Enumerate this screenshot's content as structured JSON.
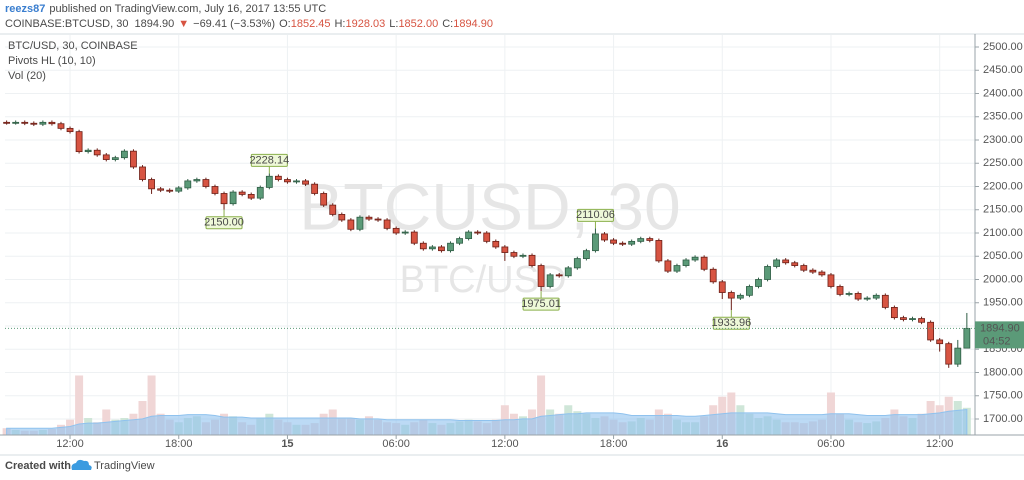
{
  "header": {
    "user": "reezs87",
    "published": "published on TradingView.com, July 16, 2017 13:55 UTC",
    "symbol": "COINBASE:BTCUSD, 30",
    "last_price": "1894.90",
    "arrow": "▼",
    "change": "−69.41 (−3.53%)",
    "ohlc": [
      {
        "label": "O:",
        "value": "1852.45"
      },
      {
        "label": "H:",
        "value": "1928.03"
      },
      {
        "label": "L:",
        "value": "1852.00"
      },
      {
        "label": "C:",
        "value": "1894.90"
      }
    ]
  },
  "footer": {
    "created": "Created with",
    "brand": "TradingView"
  },
  "chart_data": {
    "type": "candlestick",
    "title": "BTC/USD, 30, COINBASE",
    "indicators": [
      "Pivots HL (10, 10)",
      "Vol (20)"
    ],
    "watermark": "BTCUSD, 30",
    "watermark_sub": "BTC/USD",
    "countdown": "04:52",
    "up_color": "#5b9a78",
    "down_color": "#d75442",
    "volume_up_color": "#cfe6d8",
    "volume_down_color": "#f0d6d6",
    "volume_ma_color": "#8fc2ee",
    "grid": true,
    "xlim": [
      8.41,
      61.95
    ],
    "xticks": [
      {
        "value": 12,
        "label": "12:00"
      },
      {
        "value": 18,
        "label": "18:00"
      },
      {
        "value": 24,
        "label": "15"
      },
      {
        "value": 30,
        "label": "06:00"
      },
      {
        "value": 36,
        "label": "12:00"
      },
      {
        "value": 42,
        "label": "18:00"
      },
      {
        "value": 48,
        "label": "16"
      },
      {
        "value": 54,
        "label": "06:00"
      },
      {
        "value": 60,
        "label": "12:00"
      }
    ],
    "ylim": [
      1665.6,
      2525.8
    ],
    "yticks": [
      {
        "value": 1700,
        "label": "1700.00"
      },
      {
        "value": 1750,
        "label": "1750.00"
      },
      {
        "value": 1800,
        "label": "1800.00"
      },
      {
        "value": 1850,
        "label": "1850.00"
      },
      {
        "value": 1900,
        "label": "1900.00"
      },
      {
        "value": 1950,
        "label": "1950.00"
      },
      {
        "value": 2000,
        "label": "2000.00"
      },
      {
        "value": 2050,
        "label": "2050.00"
      },
      {
        "value": 2100,
        "label": "2100.00"
      },
      {
        "value": 2150,
        "label": "2150.00"
      },
      {
        "value": 2200,
        "label": "2200.00"
      },
      {
        "value": 2250,
        "label": "2250.00"
      },
      {
        "value": 2300,
        "label": "2300.00"
      },
      {
        "value": 2350,
        "label": "2350.00"
      },
      {
        "value": 2400,
        "label": "2400.00"
      },
      {
        "value": 2450,
        "label": "2450.00"
      },
      {
        "value": 2500,
        "label": "2500.00"
      }
    ],
    "vlim": [
      0,
      100
    ],
    "x": [
      8.5,
      9,
      9.5,
      10,
      10.5,
      11,
      11.5,
      12,
      12.5,
      13,
      13.5,
      14,
      14.5,
      15,
      15.5,
      16,
      16.5,
      17,
      17.5,
      18,
      18.5,
      19,
      19.5,
      20,
      20.5,
      21,
      21.5,
      22,
      22.5,
      23,
      23.5,
      24,
      24.5,
      25,
      25.5,
      26,
      26.5,
      27,
      27.5,
      28,
      28.5,
      29,
      29.5,
      30,
      30.5,
      31,
      31.5,
      32,
      32.5,
      33,
      33.5,
      34,
      34.5,
      35,
      35.5,
      36,
      36.5,
      37,
      37.5,
      38,
      38.5,
      39,
      39.5,
      40,
      40.5,
      41,
      41.5,
      42,
      42.5,
      43,
      43.5,
      44,
      44.5,
      45,
      45.5,
      46,
      46.5,
      47,
      47.5,
      48,
      48.5,
      49,
      49.5,
      50,
      50.5,
      51,
      51.5,
      52,
      52.5,
      53,
      53.5,
      54,
      54.5,
      55,
      55.5,
      56,
      56.5,
      57,
      57.5,
      58,
      58.5,
      59,
      59.5,
      60,
      60.5,
      61,
      61.5
    ],
    "open": [
      2338,
      2337,
      2338,
      2336,
      2334,
      2338,
      2335,
      2325,
      2318,
      2275,
      2278,
      2268,
      2258,
      2262,
      2276,
      2242,
      2215,
      2195,
      2192,
      2190,
      2197,
      2212,
      2215,
      2200,
      2185,
      2163,
      2188,
      2183,
      2175,
      2198,
      2222,
      2215,
      2210,
      2212,
      2205,
      2185,
      2160,
      2140,
      2128,
      2108,
      2134,
      2130,
      2128,
      2110,
      2100,
      2102,
      2078,
      2066,
      2070,
      2062,
      2078,
      2088,
      2102,
      2100,
      2082,
      2070,
      2058,
      2050,
      2052,
      2030,
      1985,
      2010,
      2008,
      2025,
      2045,
      2062,
      2098,
      2085,
      2078,
      2076,
      2082,
      2088,
      2084,
      2040,
      2018,
      2030,
      2042,
      2048,
      2022,
      1995,
      1972,
      1960,
      1966,
      1985,
      2000,
      2028,
      2042,
      2036,
      2030,
      2020,
      2016,
      2010,
      1985,
      1968,
      1970,
      1958,
      1960,
      1966,
      1940,
      1918,
      1914,
      1916,
      1908,
      1870,
      1862,
      1818,
      1852.45
    ],
    "high": [
      2342,
      2342,
      2342,
      2340,
      2342,
      2342,
      2339,
      2329,
      2322,
      2282,
      2282,
      2272,
      2266,
      2280,
      2280,
      2246,
      2219,
      2199,
      2196,
      2201,
      2216,
      2219,
      2219,
      2204,
      2189,
      2192,
      2192,
      2187,
      2202,
      2228.14,
      2226,
      2219,
      2216,
      2216,
      2209,
      2189,
      2164,
      2144,
      2132,
      2138,
      2138,
      2134,
      2132,
      2114,
      2106,
      2106,
      2082,
      2074,
      2074,
      2082,
      2092,
      2106,
      2106,
      2104,
      2086,
      2074,
      2062,
      2056,
      2056,
      2034,
      2014,
      2014,
      2029,
      2049,
      2066,
      2110.06,
      2102,
      2089,
      2082,
      2086,
      2092,
      2092,
      2088,
      2044,
      2034,
      2046,
      2052,
      2052,
      2026,
      1999,
      1976,
      1970,
      1989,
      2004,
      2032,
      2046,
      2046,
      2040,
      2034,
      2024,
      2020,
      2014,
      1989,
      1974,
      1974,
      1964,
      1970,
      1970,
      1944,
      1922,
      1920,
      1920,
      1912,
      1874,
      1866,
      1870,
      1928.03
    ],
    "low": [
      2333,
      2333,
      2332,
      2330,
      2330,
      2331,
      2321,
      2314,
      2271,
      2271,
      2264,
      2254,
      2254,
      2258,
      2238,
      2211,
      2184,
      2188,
      2186,
      2186,
      2193,
      2208,
      2196,
      2181,
      2150,
      2159,
      2179,
      2171,
      2171,
      2194,
      2211,
      2206,
      2206,
      2201,
      2181,
      2156,
      2136,
      2124,
      2104,
      2104,
      2126,
      2124,
      2106,
      2096,
      2096,
      2074,
      2062,
      2062,
      2058,
      2058,
      2074,
      2084,
      2096,
      2078,
      2066,
      2040,
      2046,
      2046,
      2026,
      1975.01,
      1981,
      2004,
      2004,
      2021,
      2041,
      2058,
      2081,
      2074,
      2072,
      2072,
      2078,
      2080,
      2036,
      2014,
      2014,
      2026,
      2038,
      2018,
      1991,
      1958,
      1933.96,
      1956,
      1962,
      1981,
      1996,
      2024,
      2032,
      2026,
      2016,
      2012,
      2006,
      1981,
      1964,
      1964,
      1954,
      1954,
      1956,
      1936,
      1914,
      1910,
      1910,
      1904,
      1866,
      1845,
      1810,
      1812,
      1852
    ],
    "close": [
      2337,
      2338,
      2336,
      2334,
      2338,
      2335,
      2325,
      2318,
      2275,
      2278,
      2268,
      2258,
      2262,
      2276,
      2242,
      2215,
      2195,
      2192,
      2190,
      2197,
      2212,
      2215,
      2200,
      2185,
      2163,
      2188,
      2183,
      2175,
      2198,
      2222,
      2215,
      2210,
      2212,
      2205,
      2185,
      2160,
      2140,
      2128,
      2108,
      2134,
      2130,
      2128,
      2110,
      2100,
      2102,
      2078,
      2066,
      2070,
      2062,
      2078,
      2088,
      2102,
      2100,
      2082,
      2070,
      2058,
      2050,
      2052,
      2030,
      1985,
      2010,
      2008,
      2025,
      2045,
      2062,
      2098,
      2085,
      2078,
      2076,
      2082,
      2088,
      2084,
      2040,
      2018,
      2030,
      2042,
      2048,
      2022,
      1995,
      1972,
      1960,
      1966,
      1985,
      2000,
      2028,
      2042,
      2036,
      2030,
      2020,
      2016,
      2010,
      1985,
      1968,
      1970,
      1958,
      1960,
      1966,
      1940,
      1918,
      1914,
      1916,
      1908,
      1870,
      1862,
      1818,
      1852.45,
      1894.9
    ],
    "volume": [
      8,
      6,
      5,
      5,
      6,
      7,
      12,
      18,
      70,
      20,
      15,
      30,
      18,
      20,
      25,
      40,
      70,
      25,
      18,
      15,
      20,
      22,
      15,
      18,
      25,
      22,
      15,
      12,
      20,
      25,
      18,
      15,
      12,
      12,
      14,
      25,
      30,
      20,
      20,
      18,
      22,
      18,
      15,
      14,
      12,
      15,
      18,
      14,
      12,
      14,
      16,
      18,
      16,
      14,
      18,
      35,
      25,
      22,
      30,
      70,
      30,
      25,
      35,
      28,
      25,
      20,
      22,
      18,
      15,
      16,
      20,
      18,
      30,
      25,
      18,
      15,
      15,
      22,
      35,
      45,
      50,
      35,
      25,
      20,
      22,
      18,
      15,
      15,
      14,
      16,
      18,
      50,
      25,
      18,
      15,
      14,
      16,
      20,
      30,
      22,
      20,
      25,
      40,
      35,
      45,
      40,
      32
    ],
    "volume_ma": [
      8,
      8,
      8,
      8,
      8,
      8,
      9,
      10,
      13,
      14,
      14,
      15,
      16,
      17,
      18,
      19,
      22,
      23,
      23,
      23,
      24,
      24,
      24,
      23,
      21,
      21,
      21,
      20,
      20,
      20,
      20,
      20,
      20,
      20,
      20,
      20,
      20,
      20,
      20,
      19,
      19,
      19,
      18,
      18,
      18,
      18,
      18,
      18,
      18,
      18,
      17,
      17,
      17,
      17,
      17,
      18,
      18,
      19,
      19,
      22,
      23,
      24,
      25,
      25,
      26,
      26,
      26,
      26,
      25,
      23,
      23,
      23,
      23,
      23,
      23,
      22,
      22,
      23,
      24,
      25,
      26,
      26,
      26,
      26,
      26,
      25,
      24,
      24,
      24,
      24,
      24,
      25,
      25,
      25,
      24,
      23,
      23,
      23,
      24,
      24,
      24,
      24,
      25,
      26,
      28,
      29,
      30
    ],
    "pivots": [
      {
        "x": 20.5,
        "value": 2150,
        "label": "2150.00",
        "side": "low"
      },
      {
        "x": 23,
        "value": 2228.14,
        "label": "2228.14",
        "side": "high"
      },
      {
        "x": 38,
        "value": 1975.01,
        "label": "1975.01",
        "side": "low"
      },
      {
        "x": 41,
        "value": 2110.06,
        "label": "2110.06",
        "side": "high"
      },
      {
        "x": 48.5,
        "value": 1933.96,
        "label": "1933.96",
        "side": "low"
      }
    ]
  }
}
